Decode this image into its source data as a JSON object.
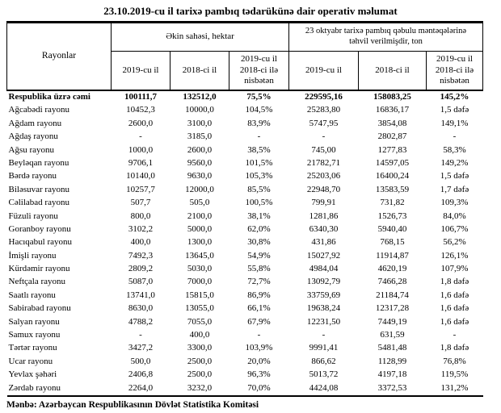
{
  "title": "23.10.2019-cu il tarixə pambıq tədarükünə dair operativ məlumat",
  "source": "Mənbə: Azərbaycan Respublikasının Dövlət Statistika Komitəsi",
  "table": {
    "region_header": "Rayonlar",
    "group_headers": {
      "sowing": "Əkin sahəsi, hektar",
      "delivered": "23 oktyabr tarixə pambıq qəbulu məntəqələrinə\ntəhvil verilmişdir, ton"
    },
    "sub_headers": {
      "y2019": "2019-cu il",
      "y2018": "2018-ci il",
      "ratio": "2019-cu il\n2018-ci ilə\nnisbətən"
    },
    "rows": [
      {
        "name": "Respublika üzrə cəmi",
        "bold": true,
        "values": [
          "100111,7",
          "132512,0",
          "75,5%",
          "229595,16",
          "158083,25",
          "145,2%"
        ]
      },
      {
        "name": "Ağcabədi rayonu",
        "values": [
          "10452,3",
          "10000,0",
          "104,5%",
          "25283,80",
          "16836,17",
          "1,5 dəfə"
        ]
      },
      {
        "name": "Ağdam rayonu",
        "values": [
          "2600,0",
          "3100,0",
          "83,9%",
          "5747,95",
          "3854,08",
          "149,1%"
        ]
      },
      {
        "name": "Ağdaş rayonu",
        "values": [
          "-",
          "3185,0",
          "-",
          "-",
          "2802,87",
          "-"
        ]
      },
      {
        "name": "Ağsu rayonu",
        "values": [
          "1000,0",
          "2600,0",
          "38,5%",
          "745,00",
          "1277,83",
          "58,3%"
        ]
      },
      {
        "name": "Beyləqan rayonu",
        "values": [
          "9706,1",
          "9560,0",
          "101,5%",
          "21782,71",
          "14597,05",
          "149,2%"
        ]
      },
      {
        "name": "Bərdə rayonu",
        "values": [
          "10140,0",
          "9630,0",
          "105,3%",
          "25203,06",
          "16400,24",
          "1,5 dəfə"
        ]
      },
      {
        "name": "Biləsuvar rayonu",
        "values": [
          "10257,7",
          "12000,0",
          "85,5%",
          "22948,70",
          "13583,59",
          "1,7 dəfə"
        ]
      },
      {
        "name": "Cəlilabad rayonu",
        "values": [
          "507,7",
          "505,0",
          "100,5%",
          "799,91",
          "731,82",
          "109,3%"
        ]
      },
      {
        "name": "Füzuli rayonu",
        "values": [
          "800,0",
          "2100,0",
          "38,1%",
          "1281,86",
          "1526,73",
          "84,0%"
        ]
      },
      {
        "name": "Goranboy rayonu",
        "values": [
          "3102,2",
          "5000,0",
          "62,0%",
          "6340,30",
          "5940,40",
          "106,7%"
        ]
      },
      {
        "name": "Hacıqabul rayonu",
        "values": [
          "400,0",
          "1300,0",
          "30,8%",
          "431,86",
          "768,15",
          "56,2%"
        ]
      },
      {
        "name": "İmişli rayonu",
        "values": [
          "7492,3",
          "13645,0",
          "54,9%",
          "15027,92",
          "11914,87",
          "126,1%"
        ]
      },
      {
        "name": "Kürdəmir rayonu",
        "values": [
          "2809,2",
          "5030,0",
          "55,8%",
          "4984,04",
          "4620,19",
          "107,9%"
        ]
      },
      {
        "name": "Neftçala rayonu",
        "values": [
          "5087,0",
          "7000,0",
          "72,7%",
          "13092,79",
          "7466,28",
          "1,8 dəfə"
        ]
      },
      {
        "name": "Saatlı rayonu",
        "values": [
          "13741,0",
          "15815,0",
          "86,9%",
          "33759,69",
          "21184,74",
          "1,6 dəfə"
        ]
      },
      {
        "name": "Sabirabad rayonu",
        "values": [
          "8630,0",
          "13055,0",
          "66,1%",
          "19638,24",
          "12317,28",
          "1,6 dəfə"
        ]
      },
      {
        "name": "Salyan rayonu",
        "values": [
          "4788,2",
          "7055,0",
          "67,9%",
          "12231,50",
          "7449,19",
          "1,6 dəfə"
        ]
      },
      {
        "name": "Samux rayonu",
        "values": [
          "-",
          "400,0",
          "-",
          "-",
          "631,59",
          "-"
        ]
      },
      {
        "name": "Tərtər rayonu",
        "values": [
          "3427,2",
          "3300,0",
          "103,9%",
          "9991,41",
          "5481,48",
          "1,8 dəfə"
        ]
      },
      {
        "name": "Ucar rayonu",
        "values": [
          "500,0",
          "2500,0",
          "20,0%",
          "866,62",
          "1128,99",
          "76,8%"
        ]
      },
      {
        "name": "Yevlax şəhəri",
        "values": [
          "2406,8",
          "2500,0",
          "96,3%",
          "5013,72",
          "4197,18",
          "119,5%"
        ]
      },
      {
        "name": "Zərdab rayonu",
        "values": [
          "2264,0",
          "3232,0",
          "70,0%",
          "4424,08",
          "3372,53",
          "131,2%"
        ]
      }
    ]
  }
}
